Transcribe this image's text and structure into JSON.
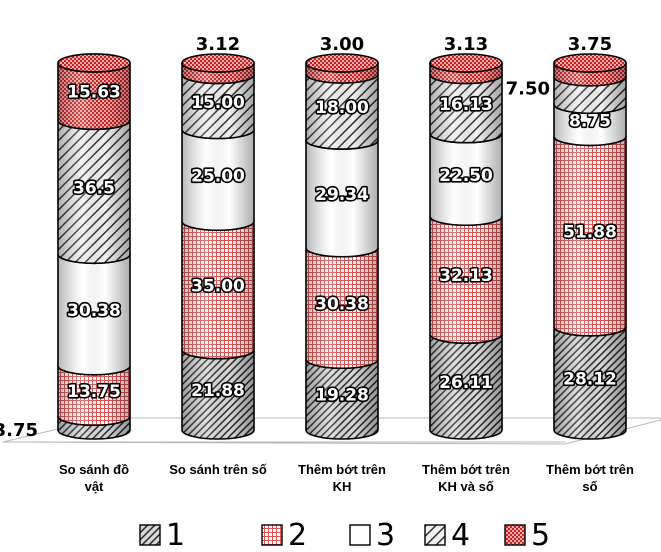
{
  "chart_data": {
    "type": "bar",
    "stacked": true,
    "percent": true,
    "title": "",
    "xlabel": "",
    "ylabel": "",
    "ylim": [
      0,
      100
    ],
    "grid": false,
    "legend_position": "bottom",
    "categories": [
      [
        "So sánh đồ",
        "vật"
      ],
      [
        "So sánh trên số"
      ],
      [
        "Thêm bớt trên",
        "KH"
      ],
      [
        "Thêm bớt trên",
        "KH và số"
      ],
      [
        "Thêm bớt trên",
        "số"
      ]
    ],
    "series": [
      {
        "name": "1",
        "pattern": "diagonal-dense",
        "color": "#3a3a3a",
        "values": [
          0,
          21.88,
          19.28,
          26.11,
          28.12
        ],
        "labels": [
          "",
          "21.88",
          "19.28",
          "26.11",
          "28.12"
        ]
      },
      {
        "name": "2",
        "pattern": "grid",
        "color": "#e74c4c",
        "values": [
          13.75,
          35.0,
          30.38,
          32.13,
          51.88
        ],
        "labels": [
          "13.75",
          "35.00",
          "30.38",
          "32.13",
          "51.88"
        ]
      },
      {
        "name": "3",
        "pattern": "solid",
        "color": "#ffffff",
        "values": [
          30.38,
          25.0,
          29.34,
          22.5,
          8.75
        ],
        "labels": [
          "30.38",
          "25.00",
          "29.34",
          "22.50",
          "8.75"
        ]
      },
      {
        "name": "4",
        "pattern": "diagonal-wide",
        "color": "#555555",
        "values": [
          36.5,
          15.0,
          18.0,
          16.13,
          7.5
        ],
        "labels": [
          "36.5",
          "15.00",
          "18.00",
          "16.13",
          "7.50"
        ]
      },
      {
        "name": "5",
        "pattern": "checker",
        "color": "#d62828",
        "values": [
          15.63,
          3.12,
          3.0,
          3.13,
          3.75
        ],
        "labels": [
          "15.63",
          "3.12",
          "3.00",
          "3.13",
          "3.75"
        ]
      }
    ],
    "other": {
      "name": "",
      "pattern": "diagonal-dense",
      "color": "#3a3a3a",
      "values": [
        3.75,
        0,
        0,
        0,
        0
      ],
      "labels": [
        "3.75",
        "",
        "",
        "",
        ""
      ]
    }
  }
}
